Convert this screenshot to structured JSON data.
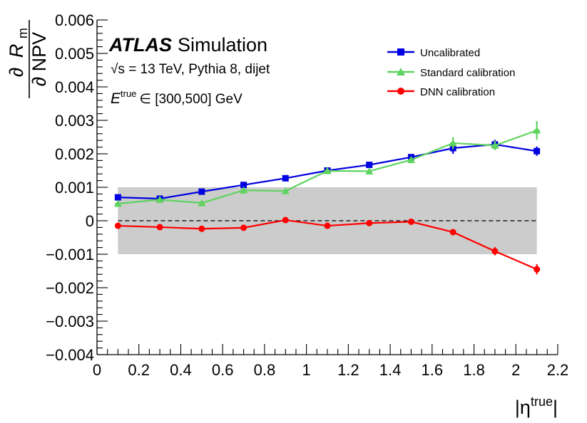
{
  "chart_data": {
    "type": "line",
    "experiment": "ATLAS",
    "experiment_suffix": "Simulation",
    "info_line1": "√s = 13 TeV, Pythia 8, dijet",
    "info_line2_symbol": "E",
    "info_line2_sup": "true",
    "info_line2_rest": "∈ [300,500] GeV",
    "xlabel": "|η",
    "xlabel_sup": "true",
    "xlabel_close": "|",
    "ylabel_num_partial": "∂",
    "ylabel_num_symbol": "R",
    "ylabel_num_sub": "m",
    "ylabel_den": "∂ NPV",
    "xlim": [
      0,
      2.2
    ],
    "ylim": [
      -0.004,
      0.006
    ],
    "x_ticks": [
      0,
      0.2,
      0.4,
      0.6,
      0.8,
      1,
      1.2,
      1.4,
      1.6,
      1.8,
      2,
      2.2
    ],
    "x_tick_labels": [
      "0",
      "0.2",
      "0.4",
      "0.6",
      "0.8",
      "1",
      "1.2",
      "1.4",
      "1.6",
      "1.8",
      "2",
      "2.2"
    ],
    "y_ticks": [
      -0.004,
      -0.003,
      -0.002,
      -0.001,
      0,
      0.001,
      0.002,
      0.003,
      0.004,
      0.005,
      0.006
    ],
    "y_tick_labels": [
      "−0.004",
      "−0.003",
      "−0.002",
      "−0.001",
      "0",
      "0.001",
      "0.002",
      "0.003",
      "0.004",
      "0.005",
      "0.006"
    ],
    "band": {
      "x": [
        0.1,
        2.1
      ],
      "y": [
        -0.001,
        0.001
      ],
      "color": "#cccccc"
    },
    "reference_line_y": 0,
    "x": [
      0.1,
      0.3,
      0.5,
      0.7,
      0.9,
      1.1,
      1.3,
      1.5,
      1.7,
      1.9,
      2.1
    ],
    "series": [
      {
        "name": "Uncalibrated",
        "color": "#0000e0",
        "marker": "square",
        "values": [
          0.0007,
          0.00066,
          0.00087,
          0.00107,
          0.00127,
          0.0015,
          0.00167,
          0.0019,
          0.00217,
          0.00228,
          0.00208
        ],
        "errors": [
          4e-05,
          4e-05,
          4e-05,
          5e-05,
          6e-05,
          6e-05,
          7e-05,
          9e-05,
          0.00017,
          0.00014,
          0.00014
        ]
      },
      {
        "name": "Standard calibration",
        "color": "#5fd35f",
        "marker": "triangle",
        "values": [
          0.00051,
          0.00063,
          0.00053,
          0.00091,
          0.00089,
          0.00149,
          0.00148,
          0.00182,
          0.00232,
          0.00225,
          0.0027
        ],
        "errors": [
          4e-05,
          4e-05,
          4e-05,
          5e-05,
          6e-05,
          6e-05,
          6e-05,
          9e-05,
          0.00018,
          0.00014,
          0.00028
        ]
      },
      {
        "name": "DNN calibration",
        "color": "#ff0000",
        "marker": "circle",
        "values": [
          -0.00015,
          -0.00019,
          -0.00024,
          -0.00021,
          2e-05,
          -0.00015,
          -7e-05,
          -3e-05,
          -0.00034,
          -0.00091,
          -0.00145
        ],
        "errors": [
          3e-05,
          3e-05,
          3e-05,
          4e-05,
          5e-05,
          5e-05,
          6e-05,
          6e-05,
          9e-05,
          0.00012,
          0.00015
        ]
      }
    ],
    "legend_position": "top-right"
  }
}
